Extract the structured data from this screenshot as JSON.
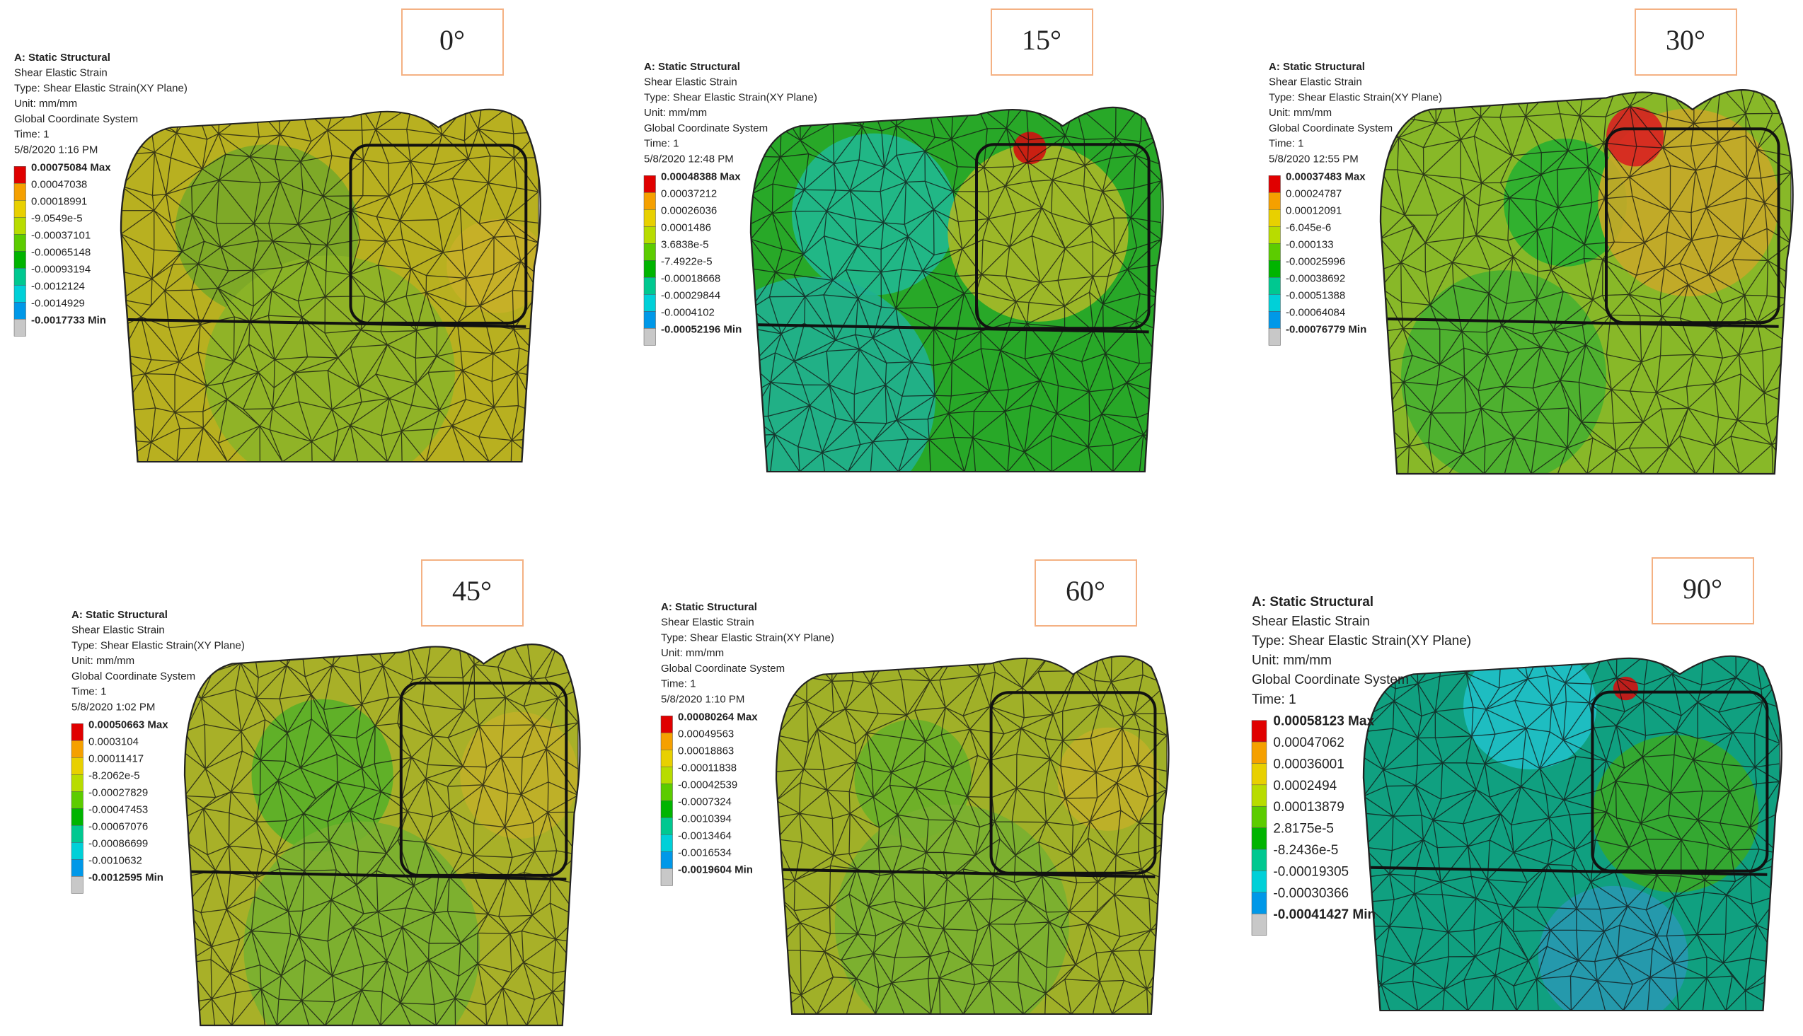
{
  "panels": [
    {
      "angle": "0°",
      "header": [
        "A: Static Structural",
        "Shear Elastic Strain",
        "Type: Shear Elastic Strain(XY Plane)",
        "Unit: mm/mm",
        "Global Coordinate System",
        "Time: 1",
        "5/8/2020 1:16 PM"
      ],
      "legend": [
        "0.00075084 Max",
        "0.00047038",
        "0.00018991",
        "-9.0549e-5",
        "-0.00037101",
        "-0.00065148",
        "-0.00093194",
        "-0.0012124",
        "-0.0014929",
        "-0.0017733 Min"
      ]
    },
    {
      "angle": "15°",
      "header": [
        "A: Static Structural",
        "Shear Elastic Strain",
        "Type: Shear Elastic Strain(XY Plane)",
        "Unit: mm/mm",
        "Global Coordinate System",
        "Time: 1",
        "5/8/2020 12:48 PM"
      ],
      "legend": [
        "0.00048388 Max",
        "0.00037212",
        "0.00026036",
        "0.0001486",
        "3.6838e-5",
        "-7.4922e-5",
        "-0.00018668",
        "-0.00029844",
        "-0.0004102",
        "-0.00052196 Min"
      ]
    },
    {
      "angle": "30°",
      "header": [
        "A: Static Structural",
        "Shear Elastic Strain",
        "Type: Shear Elastic Strain(XY Plane)",
        "Unit: mm/mm",
        "Global Coordinate System",
        "Time: 1",
        "5/8/2020 12:55 PM"
      ],
      "legend": [
        "0.00037483 Max",
        "0.00024787",
        "0.00012091",
        "-6.045e-6",
        "-0.000133",
        "-0.00025996",
        "-0.00038692",
        "-0.00051388",
        "-0.00064084",
        "-0.00076779 Min"
      ]
    },
    {
      "angle": "45°",
      "header": [
        "A: Static Structural",
        "Shear Elastic Strain",
        "Type: Shear Elastic Strain(XY Plane)",
        "Unit: mm/mm",
        "Global Coordinate System",
        "Time: 1",
        "5/8/2020 1:02 PM"
      ],
      "legend": [
        "0.00050663 Max",
        "0.0003104",
        "0.00011417",
        "-8.2062e-5",
        "-0.00027829",
        "-0.00047453",
        "-0.00067076",
        "-0.00086699",
        "-0.0010632",
        "-0.0012595 Min"
      ]
    },
    {
      "angle": "60°",
      "header": [
        "A: Static Structural",
        "Shear Elastic Strain",
        "Type: Shear Elastic Strain(XY Plane)",
        "Unit: mm/mm",
        "Global Coordinate System",
        "Time: 1",
        "5/8/2020 1:10 PM"
      ],
      "legend": [
        "0.00080264 Max",
        "0.00049563",
        "0.00018863",
        "-0.00011838",
        "-0.00042539",
        "-0.0007324",
        "-0.0010394",
        "-0.0013464",
        "-0.0016534",
        "-0.0019604 Min"
      ]
    },
    {
      "angle": "90°",
      "header": [
        "A: Static Structural",
        "Shear Elastic Strain",
        "Type: Shear Elastic Strain(XY Plane)",
        "Unit: mm/mm",
        "Global Coordinate System",
        "Time: 1"
      ],
      "legend": [
        "0.00058123 Max",
        "0.00047062",
        "0.00036001",
        "0.0002494",
        "0.00013879",
        "2.8175e-5",
        "-8.2436e-5",
        "-0.00019305",
        "-0.00030366",
        "-0.00041427 Min"
      ]
    }
  ]
}
